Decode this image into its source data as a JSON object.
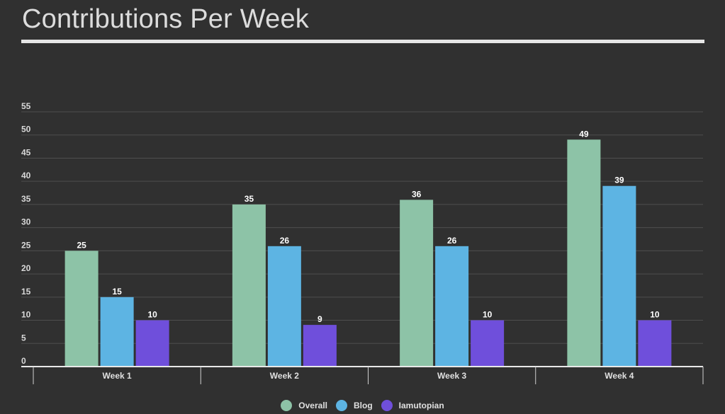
{
  "title": "Contributions Per Week",
  "chart_data": {
    "type": "bar",
    "title": "Contributions Per Week",
    "categories": [
      "Week 1",
      "Week 2",
      "Week 3",
      "Week 4"
    ],
    "series": [
      {
        "name": "Overall",
        "color": "#8dc3a7",
        "values": [
          25,
          35,
          36,
          49
        ]
      },
      {
        "name": "Blog",
        "color": "#5db4e3",
        "values": [
          15,
          26,
          26,
          39
        ]
      },
      {
        "name": "Iamutopian",
        "color": "#6f4fdb",
        "values": [
          10,
          9,
          10,
          10
        ]
      }
    ],
    "xlabel": "",
    "ylabel": "",
    "ylim": [
      0,
      55
    ],
    "yticks": [
      0,
      5,
      10,
      15,
      20,
      25,
      30,
      35,
      40,
      45,
      50,
      55
    ],
    "grid": true,
    "data_labels": true,
    "legend_position": "bottom-center"
  }
}
